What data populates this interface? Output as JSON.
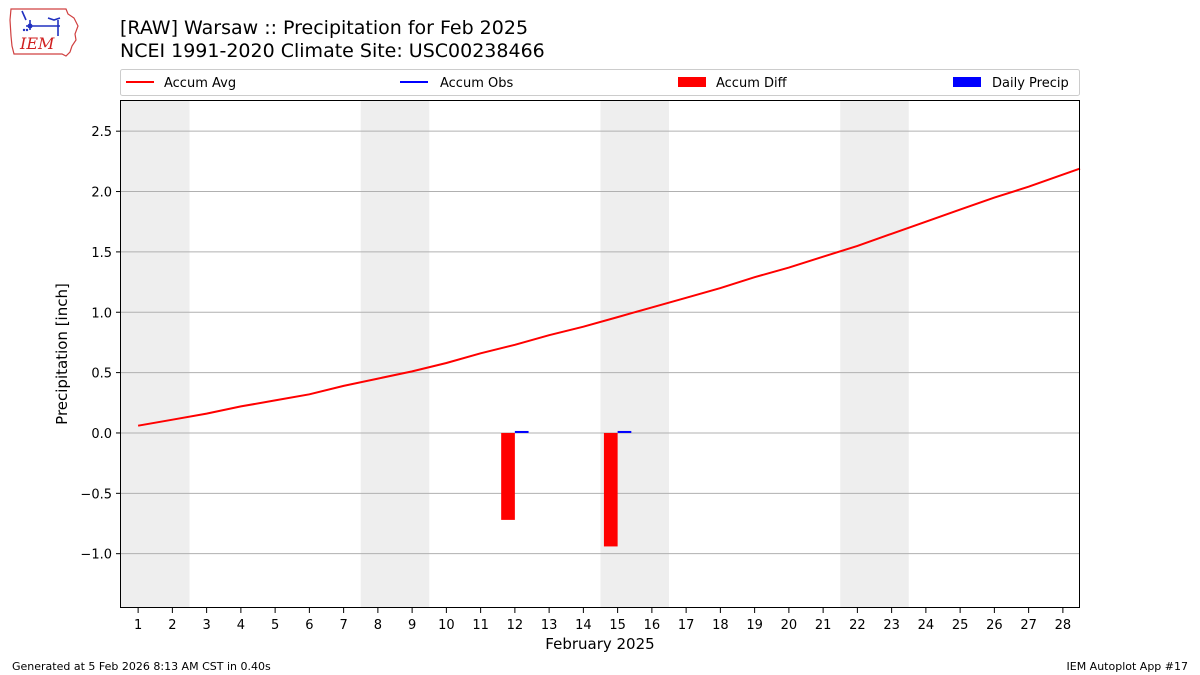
{
  "header": {
    "title_line1": "[RAW] Warsaw :: Precipitation for Feb 2025",
    "title_line2": "NCEI 1991-2020 Climate Site: USC00238466"
  },
  "logo": {
    "text": "IEM",
    "icon": "iem-iowa-logo"
  },
  "footer": {
    "generated": "Generated at 5 Feb 2026 8:13 AM CST in 0.40s",
    "app": "IEM Autoplot App #17"
  },
  "colors": {
    "accum_avg": "#ff0000",
    "accum_obs": "#0000ff",
    "accum_diff": "#ff0000",
    "daily_precip": "#0000ff",
    "weekend_band": "#eeeeee",
    "grid": "#b0b0b0"
  },
  "chart_data": {
    "type": "line",
    "xlabel": "February 2025",
    "ylabel": "Precipitation [inch]",
    "x": [
      1,
      2,
      3,
      4,
      5,
      6,
      7,
      8,
      9,
      10,
      11,
      12,
      13,
      14,
      15,
      16,
      17,
      18,
      19,
      20,
      21,
      22,
      23,
      24,
      25,
      26,
      27,
      28
    ],
    "xlim": [
      0.5,
      28.5
    ],
    "ylim": [
      -1.45,
      2.75
    ],
    "yticks": [
      -1.0,
      -0.5,
      0.0,
      0.5,
      1.0,
      1.5,
      2.0,
      2.5
    ],
    "ytick_labels": [
      "−1.0",
      "−0.5",
      "0.0",
      "0.5",
      "1.0",
      "1.5",
      "2.0",
      "2.5"
    ],
    "grid": "horizontal",
    "legend_position": "top",
    "legend": [
      "Accum Avg",
      "Accum Obs",
      "Accum Diff",
      "Daily Precip"
    ],
    "weekend_bands": [
      [
        0.5,
        2.5
      ],
      [
        7.5,
        9.5
      ],
      [
        14.5,
        16.5
      ],
      [
        21.5,
        23.5
      ]
    ],
    "series": [
      {
        "name": "Accum Avg",
        "kind": "line",
        "x": [
          1,
          2,
          3,
          4,
          5,
          6,
          7,
          8,
          9,
          10,
          11,
          12,
          13,
          14,
          15,
          16,
          17,
          18,
          19,
          20,
          21,
          22,
          23,
          24,
          25,
          26,
          27,
          28,
          28.5
        ],
        "values": [
          0.06,
          0.11,
          0.16,
          0.22,
          0.27,
          0.32,
          0.39,
          0.45,
          0.51,
          0.58,
          0.66,
          0.73,
          0.81,
          0.88,
          0.96,
          1.04,
          1.12,
          1.2,
          1.29,
          1.37,
          1.46,
          1.55,
          1.65,
          1.75,
          1.85,
          1.95,
          2.04,
          2.14,
          2.19
        ]
      },
      {
        "name": "Accum Diff",
        "kind": "bar",
        "x": [
          12,
          15
        ],
        "values": [
          -0.72,
          -0.94
        ]
      },
      {
        "name": "Daily Precip",
        "kind": "bar",
        "x": [
          12,
          15
        ],
        "values": [
          0.01,
          0.01
        ]
      }
    ]
  }
}
